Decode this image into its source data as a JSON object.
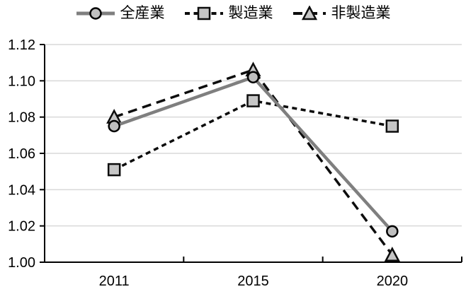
{
  "chart_data": {
    "type": "line",
    "title": "",
    "xlabel": "",
    "ylabel": "",
    "categories": [
      "2011",
      "2015",
      "2020"
    ],
    "series": [
      {
        "name": "全産業",
        "key": "all-industries",
        "values": [
          1.075,
          1.102,
          1.017
        ],
        "line_color": "#7F7F7F",
        "line_style": "solid",
        "marker": "circle",
        "marker_fill": "#BFBFBF",
        "marker_stroke": "#000000"
      },
      {
        "name": "製造業",
        "key": "manufacturing",
        "values": [
          1.051,
          1.089,
          1.075
        ],
        "line_color": "#0D0D0D",
        "line_style": "dashed-short",
        "marker": "square",
        "marker_fill": "#C6C6C6",
        "marker_stroke": "#0D0D0D"
      },
      {
        "name": "非製造業",
        "key": "non-manufacturing",
        "values": [
          1.08,
          1.106,
          1.004
        ],
        "line_color": "#0D0D0D",
        "line_style": "dashed-long",
        "marker": "triangle",
        "marker_fill": "#C6C6C6",
        "marker_stroke": "#0D0D0D"
      }
    ],
    "ylim": [
      1.0,
      1.12
    ],
    "yticks": [
      "1.00",
      "1.02",
      "1.04",
      "1.06",
      "1.08",
      "1.10",
      "1.12"
    ],
    "grid": "horizontal-only",
    "gridline_color": "#D9D9D9",
    "axis_color": "#000000",
    "text_color": "#000000",
    "legend_position": "top-center",
    "background": "#FFFFFF"
  }
}
